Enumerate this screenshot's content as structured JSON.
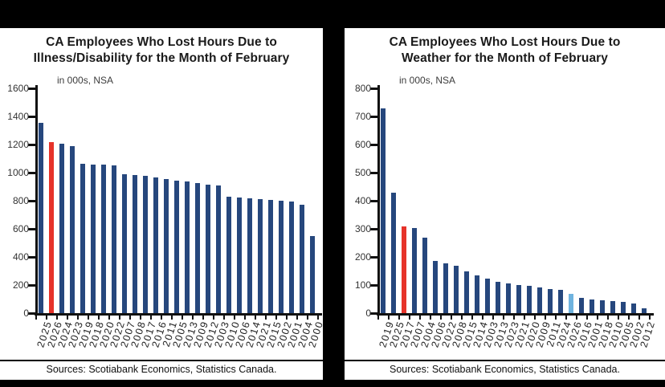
{
  "colors": {
    "background": "#000000",
    "panel_bg": "#FFFFFF",
    "bar_navy": "#26477D",
    "bar_red": "#E6332A",
    "bar_lightblue": "#6FB3DF",
    "axis": "#111111",
    "title_text": "#1A1A1A",
    "subtitle_text": "#3C3C3C",
    "tick_text": "#333333",
    "source_text": "#111111"
  },
  "chart_data": [
    {
      "type": "bar",
      "title": "CA Employees Who Lost Hours Due to Illness/Disability for the Month of February",
      "title_lines": [
        "CA Employees Who Lost Hours Due to",
        "Illness/Disability for the Month of February"
      ],
      "units_note": "in 000s, NSA",
      "xlabel": "",
      "ylabel": "in 000s, NSA",
      "source": "Sources: Scotiabank Economics, Statistics Canada.",
      "grid": false,
      "legend": "none",
      "ylim": [
        0,
        1600
      ],
      "ytick_step": 200,
      "yticks": [
        0,
        200,
        400,
        600,
        800,
        1000,
        1200,
        1400,
        1600
      ],
      "categories": [
        "2025",
        "2026",
        "2024",
        "2023",
        "2019",
        "2018",
        "2020",
        "2022",
        "2007",
        "2008",
        "2017",
        "2016",
        "2011",
        "2005",
        "2013",
        "2009",
        "2012",
        "2003",
        "2010",
        "2006",
        "2014",
        "2021",
        "2015",
        "2002",
        "2001",
        "2004",
        "2000"
      ],
      "values": [
        1355,
        1215,
        1205,
        1190,
        1065,
        1060,
        1055,
        1050,
        990,
        985,
        975,
        965,
        955,
        945,
        935,
        925,
        915,
        910,
        830,
        825,
        818,
        812,
        805,
        798,
        792,
        772,
        550
      ],
      "highlights": [
        {
          "category": "2026",
          "color": "#E6332A"
        }
      ]
    },
    {
      "type": "bar",
      "title": "CA Employees Who Lost Hours Due to Weather for the Month of February",
      "title_lines": [
        "CA Employees Who Lost Hours Due to",
        "Weather for the Month of February"
      ],
      "units_note": "in 000s, NSA",
      "xlabel": "",
      "ylabel": "in 000s, NSA",
      "source": "Sources: Scotiabank Economics, Statistics Canada.",
      "grid": false,
      "legend": "none",
      "ylim": [
        0,
        800
      ],
      "ytick_step": 100,
      "yticks": [
        0,
        100,
        200,
        300,
        400,
        500,
        600,
        700,
        800
      ],
      "categories": [
        "2019",
        "2025",
        "2017",
        "2007",
        "2004",
        "2006",
        "2022",
        "2008",
        "2015",
        "2014",
        "2003",
        "2013",
        "2023",
        "2021",
        "2020",
        "2009",
        "2011",
        "2024",
        "2026",
        "2016",
        "2001",
        "2018",
        "2010",
        "2005",
        "2002",
        "2012"
      ],
      "values": [
        730,
        430,
        310,
        303,
        270,
        185,
        178,
        170,
        148,
        135,
        122,
        112,
        106,
        100,
        96,
        92,
        87,
        82,
        68,
        55,
        50,
        46,
        43,
        40,
        35,
        18
      ],
      "highlights": [
        {
          "category": "2017",
          "color": "#E6332A"
        },
        {
          "category": "2026",
          "color": "#6FB3DF"
        }
      ]
    }
  ]
}
